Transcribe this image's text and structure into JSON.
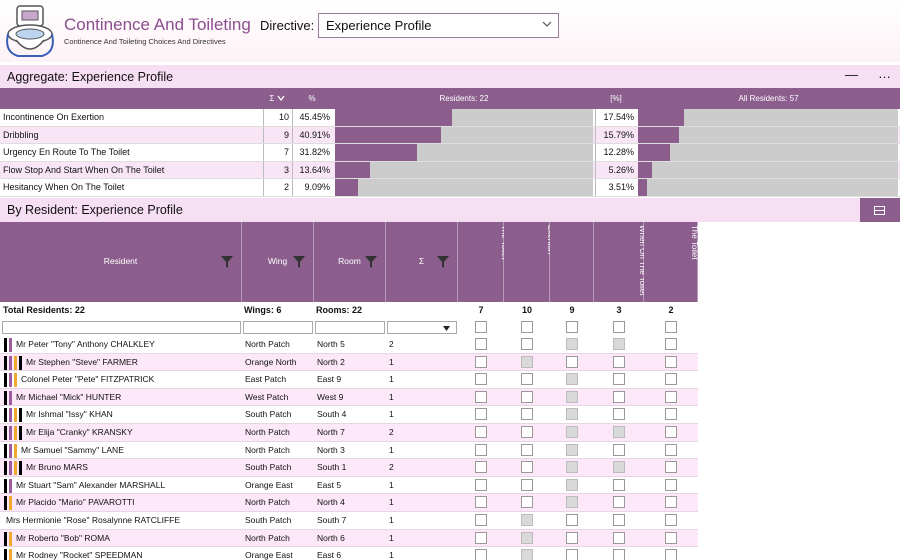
{
  "header": {
    "app_title": "Continence And Toileting",
    "app_subtitle": "Continence And Toileting Choices And Directives",
    "directive_label": "Directive:",
    "directive_value": "Experience Profile"
  },
  "aggregate": {
    "section_title": "Aggregate: Experience Profile",
    "minimize_label": "—",
    "more_label": "…",
    "columns": {
      "sum": "Σ",
      "pct": "%",
      "residents": "Residents: 22",
      "all_pct": "[%]",
      "all_residents": "All Residents: 57"
    },
    "rows": [
      {
        "label": "Incontinence On Exertion",
        "count": "10",
        "pct": "45.45%",
        "pct_value": 45.45,
        "all_pct": "17.54%",
        "all_pct_value": 17.54
      },
      {
        "label": "Dribbling",
        "count": "9",
        "pct": "40.91%",
        "pct_value": 40.91,
        "all_pct": "15.79%",
        "all_pct_value": 15.79
      },
      {
        "label": "Urgency En Route To The Toilet",
        "count": "7",
        "pct": "31.82%",
        "pct_value": 31.82,
        "all_pct": "12.28%",
        "all_pct_value": 12.28
      },
      {
        "label": "Flow Stop And Start When On The Toilet",
        "count": "3",
        "pct": "13.64%",
        "pct_value": 13.64,
        "all_pct": "5.26%",
        "all_pct_value": 5.26
      },
      {
        "label": "Hesitancy When On The Toilet",
        "count": "2",
        "pct": "9.09%",
        "pct_value": 9.09,
        "all_pct": "3.51%",
        "all_pct_value": 3.51
      }
    ]
  },
  "by_resident": {
    "section_title": "By Resident: Experience Profile",
    "headers": {
      "resident": "Resident",
      "wing": "Wing",
      "room": "Room",
      "sum": "Σ"
    },
    "indicator_headers": [
      "Urgency En Route To The Toilet",
      "Incontinence On Exertion",
      "Dribbling",
      "Flow Stop And Start When On The Toilet",
      "Hesitancy When On The Toilet"
    ],
    "totals": {
      "residents": "Total Residents: 22",
      "wings": "Wings: 6",
      "rooms": "Rooms: 22",
      "counts": [
        "7",
        "10",
        "9",
        "3",
        "2"
      ]
    },
    "rows": [
      {
        "name": "Mr Peter \"Tony\" Anthony CHALKLEY",
        "wing": "North Patch",
        "room": "North  5",
        "sum": "2",
        "checks": [
          false,
          false,
          true,
          true,
          false
        ],
        "marks": [
          "#000000",
          "#9b5d9d"
        ]
      },
      {
        "name": "Mr Stephen \"Steve\" FARMER",
        "wing": "Orange North",
        "room": "North  2",
        "sum": "1",
        "checks": [
          false,
          true,
          false,
          false,
          false
        ],
        "marks": [
          "#000000",
          "#9b5d9d",
          "#f0a830",
          "#000000"
        ]
      },
      {
        "name": "Colonel Peter \"Pete\" FITZPATRICK",
        "wing": "East Patch",
        "room": "East  9",
        "sum": "1",
        "checks": [
          false,
          false,
          true,
          false,
          false
        ],
        "marks": [
          "#000000",
          "#9b5d9d",
          "#f0a830"
        ]
      },
      {
        "name": "Mr Michael \"Mick\" HUNTER",
        "wing": "West Patch",
        "room": "West  9",
        "sum": "1",
        "checks": [
          false,
          false,
          true,
          false,
          false
        ],
        "marks": [
          "#000000",
          "#9b5d9d"
        ]
      },
      {
        "name": "Mr Ishmal \"Issy\" KHAN",
        "wing": "South Patch",
        "room": "South  4",
        "sum": "1",
        "checks": [
          false,
          false,
          true,
          false,
          false
        ],
        "marks": [
          "#000000",
          "#9b5d9d",
          "#f0a830",
          "#000000"
        ]
      },
      {
        "name": "Mr Elija \"Cranky\" KRANSKY",
        "wing": "North Patch",
        "room": "North  7",
        "sum": "2",
        "checks": [
          false,
          false,
          true,
          true,
          false
        ],
        "marks": [
          "#000000",
          "#9b5d9d",
          "#f0a830",
          "#000000"
        ]
      },
      {
        "name": "Mr Samuel \"Sammy\" LANE",
        "wing": "North Patch",
        "room": "North  3",
        "sum": "1",
        "checks": [
          false,
          false,
          true,
          false,
          false
        ],
        "marks": [
          "#000000",
          "#9b5d9d",
          "#f0a830"
        ]
      },
      {
        "name": "Mr Bruno MARS",
        "wing": "South Patch",
        "room": "South  1",
        "sum": "2",
        "checks": [
          false,
          false,
          true,
          true,
          false
        ],
        "marks": [
          "#000000",
          "#9b5d9d",
          "#f0a830",
          "#000000"
        ]
      },
      {
        "name": "Mr Stuart \"Sam\" Alexander MARSHALL",
        "wing": "Orange East",
        "room": "East  5",
        "sum": "1",
        "checks": [
          false,
          false,
          true,
          false,
          false
        ],
        "marks": [
          "#000000",
          "#9b5d9d"
        ]
      },
      {
        "name": "Mr Placido \"Mario\" PAVAROTTI",
        "wing": "North Patch",
        "room": "North  4",
        "sum": "1",
        "checks": [
          false,
          false,
          true,
          false,
          false
        ],
        "marks": [
          "#000000",
          "#f0a830"
        ]
      },
      {
        "name": "Mrs Hermionie \"Rose\" Rosalynne RATCLIFFE",
        "wing": "South Patch",
        "room": "South  7",
        "sum": "1",
        "checks": [
          false,
          true,
          false,
          false,
          false
        ],
        "marks": []
      },
      {
        "name": "Mr Roberto \"Bob\" ROMA",
        "wing": "North Patch",
        "room": "North  6",
        "sum": "1",
        "checks": [
          false,
          true,
          false,
          false,
          false
        ],
        "marks": [
          "#000000",
          "#f0a830"
        ]
      },
      {
        "name": "Mr Rodney \"Rocket\" SPEEDMAN",
        "wing": "Orange East",
        "room": "East  6",
        "sum": "1",
        "checks": [
          false,
          true,
          false,
          false,
          false
        ],
        "marks": [
          "#000000",
          "#f0a830"
        ]
      }
    ]
  }
}
